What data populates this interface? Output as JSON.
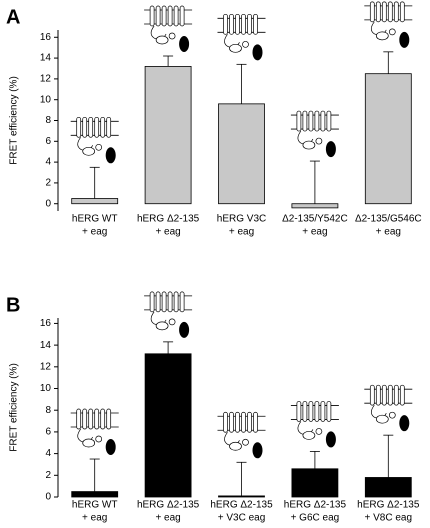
{
  "chart_data": [
    {
      "type": "bar",
      "panel": "A",
      "y_label": "FRET efficiency (%)",
      "categories": [
        [
          "hERG WT",
          "+ eag"
        ],
        [
          "hERG Δ2-135",
          "+ eag"
        ],
        [
          "hERG V3C",
          "+ eag"
        ],
        [
          "Δ2-135/Y542C",
          "+ eag"
        ],
        [
          "Δ2-135/G546C",
          "+ eag"
        ]
      ],
      "values": [
        0.5,
        13.2,
        9.6,
        -0.4,
        12.5
      ],
      "errors": [
        3.0,
        1.0,
        3.8,
        4.5,
        2.1
      ],
      "color": "#c8c8c8",
      "ylim": [
        -0.7,
        16.7
      ],
      "yticks": [
        0,
        2,
        4,
        6,
        8,
        10,
        12,
        14,
        16
      ]
    },
    {
      "type": "bar",
      "panel": "B",
      "y_label": "FRET efficiency (%)",
      "categories": [
        [
          "hERG WT",
          "+ eag"
        ],
        [
          "hERG Δ2-135",
          "+ eag"
        ],
        [
          "hERG Δ2-135",
          "+ V3C eag"
        ],
        [
          "hERG Δ2-135",
          "+ G6C eag"
        ],
        [
          "hERG Δ2-135",
          "+ V8C eag"
        ]
      ],
      "values": [
        0.5,
        13.2,
        0.1,
        2.6,
        1.8
      ],
      "errors": [
        3.0,
        1.1,
        3.1,
        1.6,
        3.9
      ],
      "color": "#000000",
      "ylim": [
        0,
        16.5
      ],
      "yticks": [
        0,
        2,
        4,
        6,
        8,
        10,
        12,
        14,
        16
      ]
    }
  ]
}
